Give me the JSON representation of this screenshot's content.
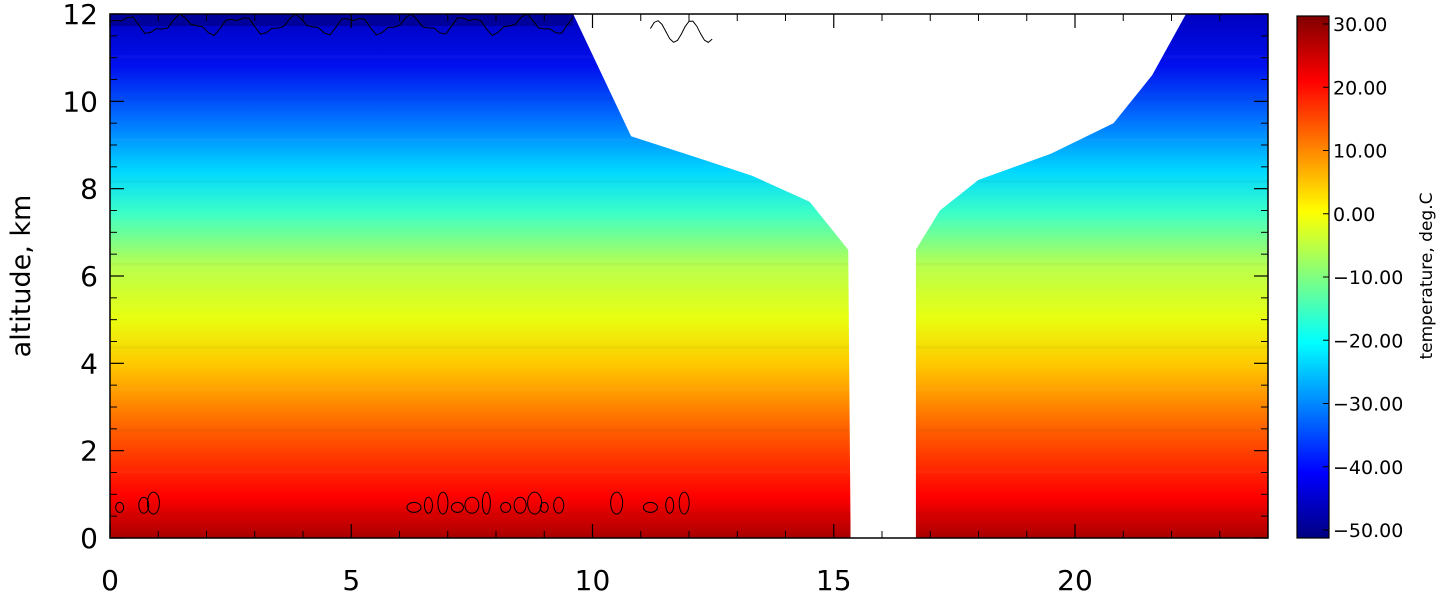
{
  "chart_data": {
    "type": "heatmap",
    "title": "",
    "xlabel": "",
    "ylabel": "altitude, km",
    "xlim": [
      0,
      24
    ],
    "ylim": [
      0,
      12
    ],
    "x_ticks": [
      "0",
      "5",
      "10",
      "15",
      "20"
    ],
    "y_ticks": [
      "0",
      "2",
      "4",
      "6",
      "8",
      "10",
      "12"
    ],
    "colorbar": {
      "label": "temperature, deg.C",
      "range": [
        -50,
        30
      ],
      "ticks": [
        "30.00",
        "20.00",
        "10.00",
        "0.00",
        "−10.00",
        "−20.00",
        "−30.00",
        "−40.00",
        "−50.00"
      ]
    },
    "profile": {
      "altitude_km": [
        0,
        2,
        4,
        5,
        6,
        8,
        10,
        12
      ],
      "temperature_c": [
        27,
        18,
        9,
        3,
        -4,
        -18,
        -34,
        -45
      ]
    },
    "missing_data": {
      "gap_x": [
        15.35,
        16.7
      ],
      "upper_boundary_left": [
        [
          9.6,
          12
        ],
        [
          10.2,
          10.6
        ],
        [
          10.8,
          9.2
        ],
        [
          12.2,
          8.7
        ],
        [
          13.3,
          8.3
        ],
        [
          14.5,
          7.7
        ],
        [
          15.3,
          6.6
        ]
      ],
      "upper_boundary_right": [
        [
          16.7,
          6.6
        ],
        [
          17.2,
          7.5
        ],
        [
          18.0,
          8.2
        ],
        [
          19.5,
          8.8
        ],
        [
          20.8,
          9.5
        ],
        [
          21.6,
          10.6
        ],
        [
          22.3,
          12
        ]
      ]
    },
    "colors": {
      "colormap": [
        "#000080",
        "#0000ff",
        "#0080ff",
        "#00ffff",
        "#80ff80",
        "#ffff00",
        "#ff8000",
        "#ff0000",
        "#800000"
      ],
      "contour": "#000000"
    }
  }
}
